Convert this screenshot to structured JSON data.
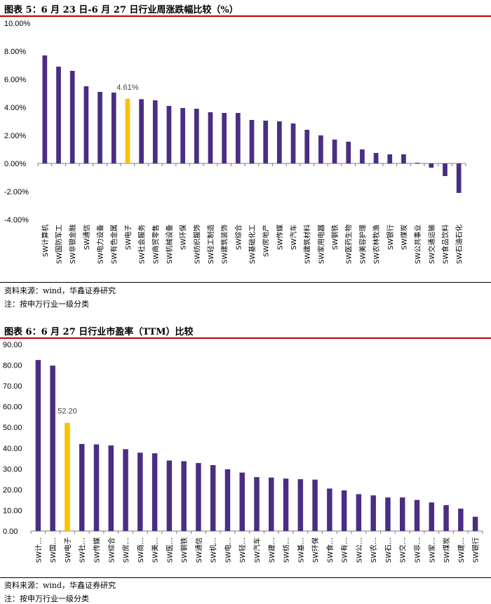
{
  "colors": {
    "bar": "#4b2d83",
    "highlight": "#ffc000",
    "rule": "#c00000"
  },
  "chart_data": [
    {
      "type": "bar",
      "title": "图表 5：6 月 23 日-6 月 27 日行业周涨跌幅比较（%）",
      "xlabel": "",
      "ylabel": "",
      "ylim": [
        -4,
        10
      ],
      "yticks": [
        "-4.00%",
        "-2.00%",
        "0.00%",
        "2.00%",
        "4.00%",
        "6.00%",
        "8.00%",
        "10.00%"
      ],
      "highlight_index": 6,
      "data_label": "4.61%",
      "categories": [
        "SW计算机",
        "SW国防军工",
        "SW非银金融",
        "SW通信",
        "SW电力设备",
        "SW有色金属",
        "SW电子",
        "SW社会服务",
        "SW商贸零售",
        "SW机械设备",
        "SW环保",
        "SW纺织服饰",
        "SW轻工制造",
        "SW建筑装饰",
        "SW综合",
        "SW基础化工",
        "SW房地产",
        "SW传媒",
        "SW汽车",
        "SW建筑材料",
        "SW家用电器",
        "SW钢铁",
        "SW医药生物",
        "SW美容护理",
        "SW农林牧渔",
        "SW银行",
        "SW煤炭",
        "SW公共事业",
        "SW交通运输",
        "SW食品饮料",
        "SW石油石化"
      ],
      "values": [
        7.7,
        6.9,
        6.6,
        5.5,
        5.1,
        5.05,
        4.61,
        4.58,
        4.5,
        4.1,
        3.95,
        3.9,
        3.65,
        3.6,
        3.6,
        3.1,
        3.05,
        3.0,
        2.85,
        2.4,
        2.0,
        1.7,
        1.55,
        1.0,
        0.75,
        0.65,
        0.65,
        0.05,
        -0.3,
        -0.9,
        -2.1
      ],
      "source": "资料来源：wind，华鑫证券研究",
      "note": "注：按申万行业一级分类"
    },
    {
      "type": "bar",
      "title": "图表 6：6 月 27 日行业市盈率（TTM）比较",
      "xlabel": "",
      "ylabel": "",
      "ylim": [
        0,
        90
      ],
      "yticks": [
        "0.00",
        "10.00",
        "20.00",
        "30.00",
        "40.00",
        "50.00",
        "60.00",
        "70.00",
        "80.00",
        "90.00"
      ],
      "highlight_index": 2,
      "data_label": "52.20",
      "categories": [
        "SW计…",
        "SW国…",
        "SW电子",
        "SW社…",
        "SW传媒",
        "SW综合",
        "SW房…",
        "SW商…",
        "SW美…",
        "SW医…",
        "SW钢铁",
        "SW通信",
        "SW机…",
        "SW电…",
        "SW轻…",
        "SW汽车",
        "SW建…",
        "SW纺…",
        "SW基…",
        "SW环保",
        "SW食…",
        "SW有…",
        "SW公…",
        "SW农…",
        "SW石…",
        "SW交…",
        "SW非…",
        "SW家…",
        "SW煤炭",
        "SW建…",
        "SW银行"
      ],
      "values": [
        82.5,
        79.8,
        52.2,
        42.0,
        41.8,
        41.3,
        39.5,
        37.8,
        37.5,
        34.0,
        33.7,
        32.8,
        31.8,
        29.8,
        28.2,
        26.0,
        25.8,
        25.3,
        25.0,
        24.8,
        20.5,
        19.6,
        17.8,
        17.2,
        16.2,
        16.2,
        15.0,
        13.8,
        12.5,
        10.8,
        6.9
      ],
      "source": "资料来源：wind，华鑫证券研究",
      "note": "注：按申万行业一级分类"
    }
  ]
}
